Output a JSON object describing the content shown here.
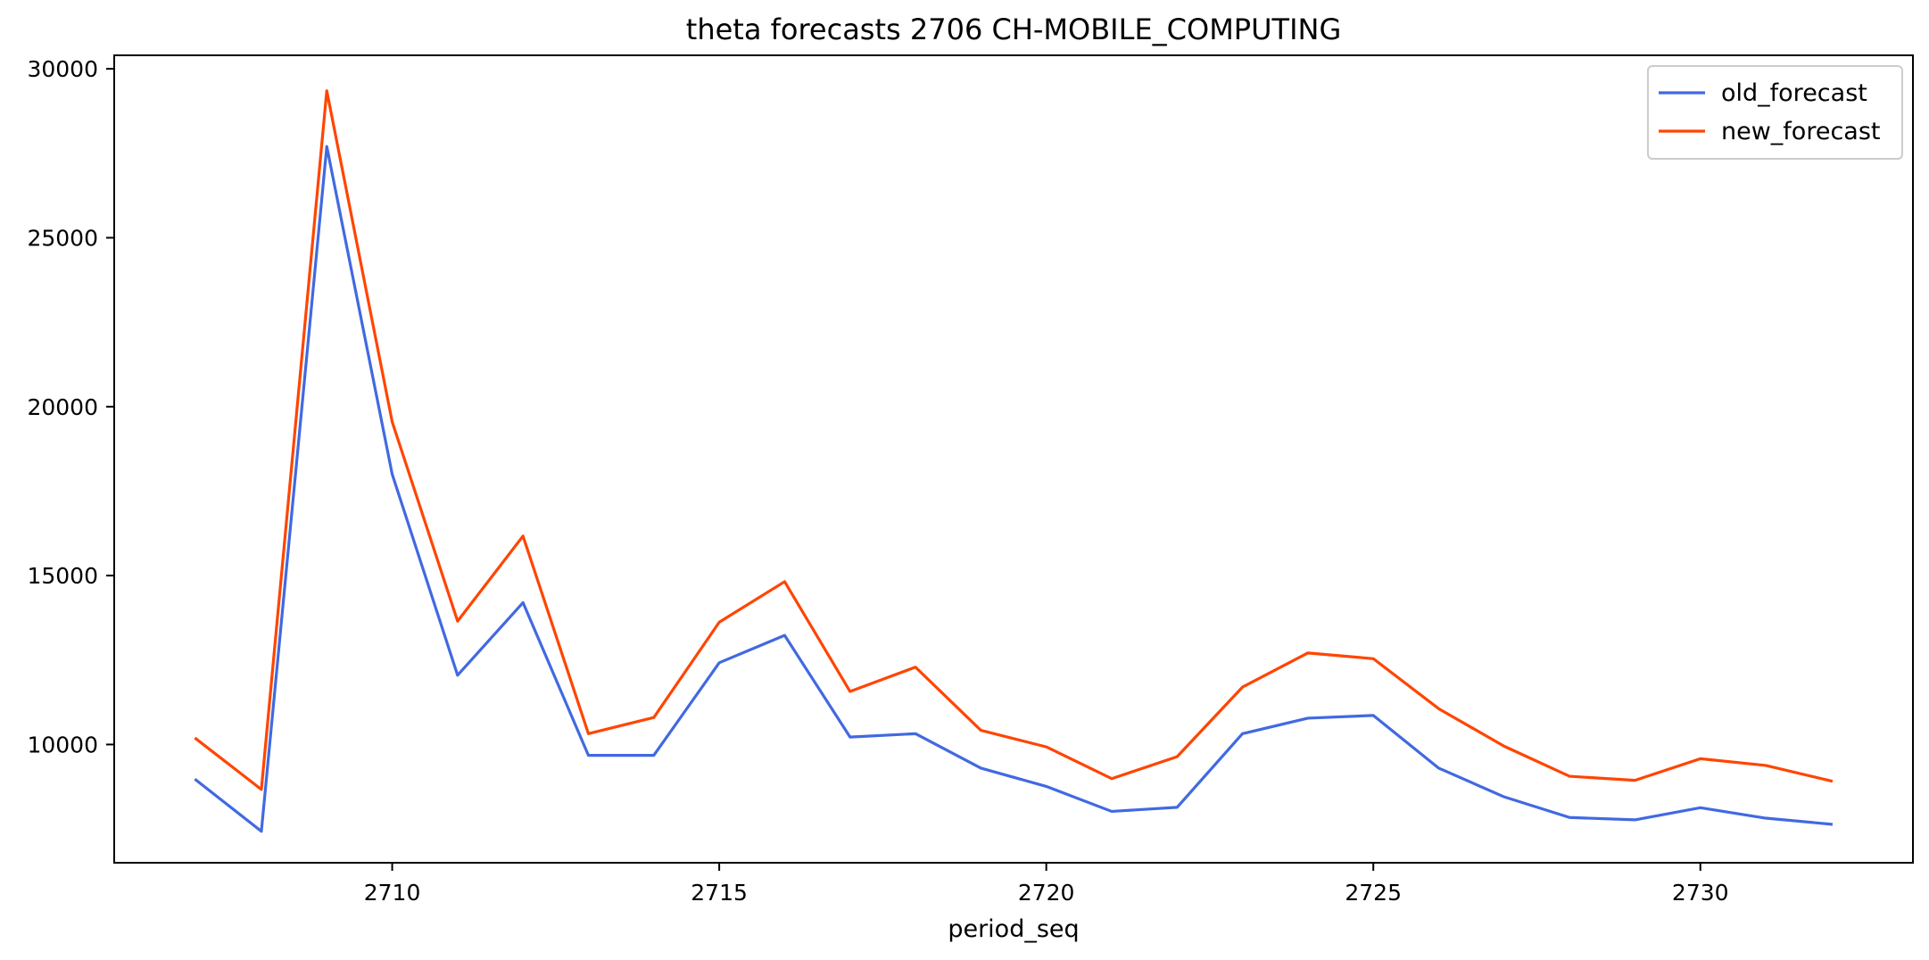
{
  "chart_data": {
    "type": "line",
    "title": "theta forecasts 2706 CH-MOBILE_COMPUTING",
    "xlabel": "period_seq",
    "ylabel": "",
    "x": [
      2707,
      2708,
      2709,
      2710,
      2711,
      2712,
      2713,
      2714,
      2715,
      2716,
      2717,
      2718,
      2719,
      2720,
      2721,
      2722,
      2723,
      2724,
      2725,
      2726,
      2727,
      2728,
      2729,
      2730,
      2731,
      2732
    ],
    "xlim": [
      2705.75,
      2733.25
    ],
    "ylim": [
      6500,
      30400
    ],
    "xticks": [
      2710,
      2715,
      2720,
      2725,
      2730
    ],
    "yticks": [
      10000,
      15000,
      20000,
      25000,
      30000
    ],
    "grid": false,
    "legend_position": "top-right",
    "series": [
      {
        "name": "old_forecast",
        "color": "#4169e1",
        "values": [
          8950,
          7430,
          27700,
          18000,
          12050,
          14200,
          9680,
          9680,
          12420,
          13230,
          10220,
          10320,
          9300,
          8760,
          8020,
          8140,
          10320,
          10780,
          10860,
          9300,
          8450,
          7840,
          7770,
          8130,
          7820,
          7640
        ]
      },
      {
        "name": "new_forecast",
        "color": "#ff4500",
        "values": [
          10170,
          8670,
          29350,
          19550,
          13650,
          16170,
          10320,
          10800,
          13620,
          14820,
          11570,
          12290,
          10420,
          9930,
          8990,
          9640,
          11700,
          12710,
          12540,
          11060,
          9950,
          9060,
          8940,
          9580,
          9380,
          8920
        ]
      }
    ]
  }
}
